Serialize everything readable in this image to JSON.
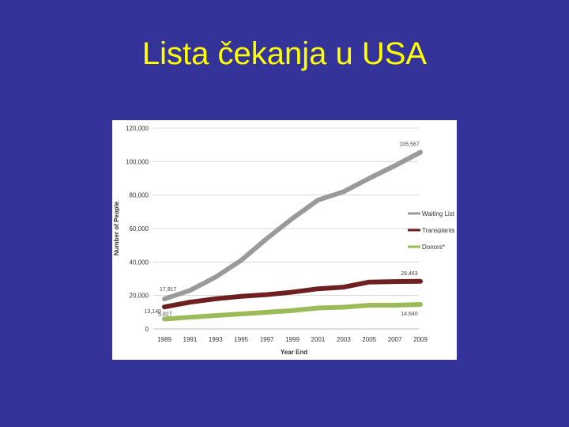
{
  "slide": {
    "title": "Lista čekanja u USA",
    "background_color": "#333399",
    "title_color": "#ffff00"
  },
  "chart_data": {
    "type": "line",
    "xlabel": "Year End",
    "ylabel": "Number of People",
    "x": [
      1989,
      1991,
      1993,
      1995,
      1997,
      1999,
      2001,
      2003,
      2005,
      2007,
      2009
    ],
    "x_tick_labels": [
      "1989",
      "1991",
      "1993",
      "1995",
      "1997",
      "1999",
      "2001",
      "2003",
      "2005",
      "2007",
      "2009"
    ],
    "ylim": [
      0,
      120000
    ],
    "y_ticks": [
      0,
      20000,
      40000,
      60000,
      80000,
      100000,
      120000
    ],
    "y_tick_labels": [
      "0",
      "20,000",
      "40,000",
      "60,000",
      "80,000",
      "100,000",
      "120,000"
    ],
    "grid": true,
    "legend_placement": "right",
    "series": [
      {
        "name": "Waiting List",
        "color": "#9a9a9a",
        "values": [
          17917,
          23000,
          31000,
          41000,
          54000,
          66000,
          77000,
          82000,
          90000,
          97500,
          105567
        ]
      },
      {
        "name": "Transplants",
        "color": "#6e1f1f",
        "values": [
          13140,
          16000,
          18000,
          19500,
          20500,
          22000,
          24000,
          25000,
          28000,
          28300,
          28463
        ]
      },
      {
        "name": "Donors*",
        "color": "#9bbb59",
        "values": [
          5927,
          7000,
          8000,
          9000,
          10000,
          11000,
          12500,
          13000,
          14200,
          14200,
          14640
        ]
      }
    ],
    "data_labels": [
      {
        "series": 0,
        "index": 0,
        "text": "17,917"
      },
      {
        "series": 0,
        "index": 10,
        "text": "105,567"
      },
      {
        "series": 1,
        "index": 0,
        "text": "13,140"
      },
      {
        "series": 1,
        "index": 10,
        "text": "28,463"
      },
      {
        "series": 2,
        "index": 0,
        "text": "5,927"
      },
      {
        "series": 2,
        "index": 10,
        "text": "14,640"
      }
    ]
  }
}
